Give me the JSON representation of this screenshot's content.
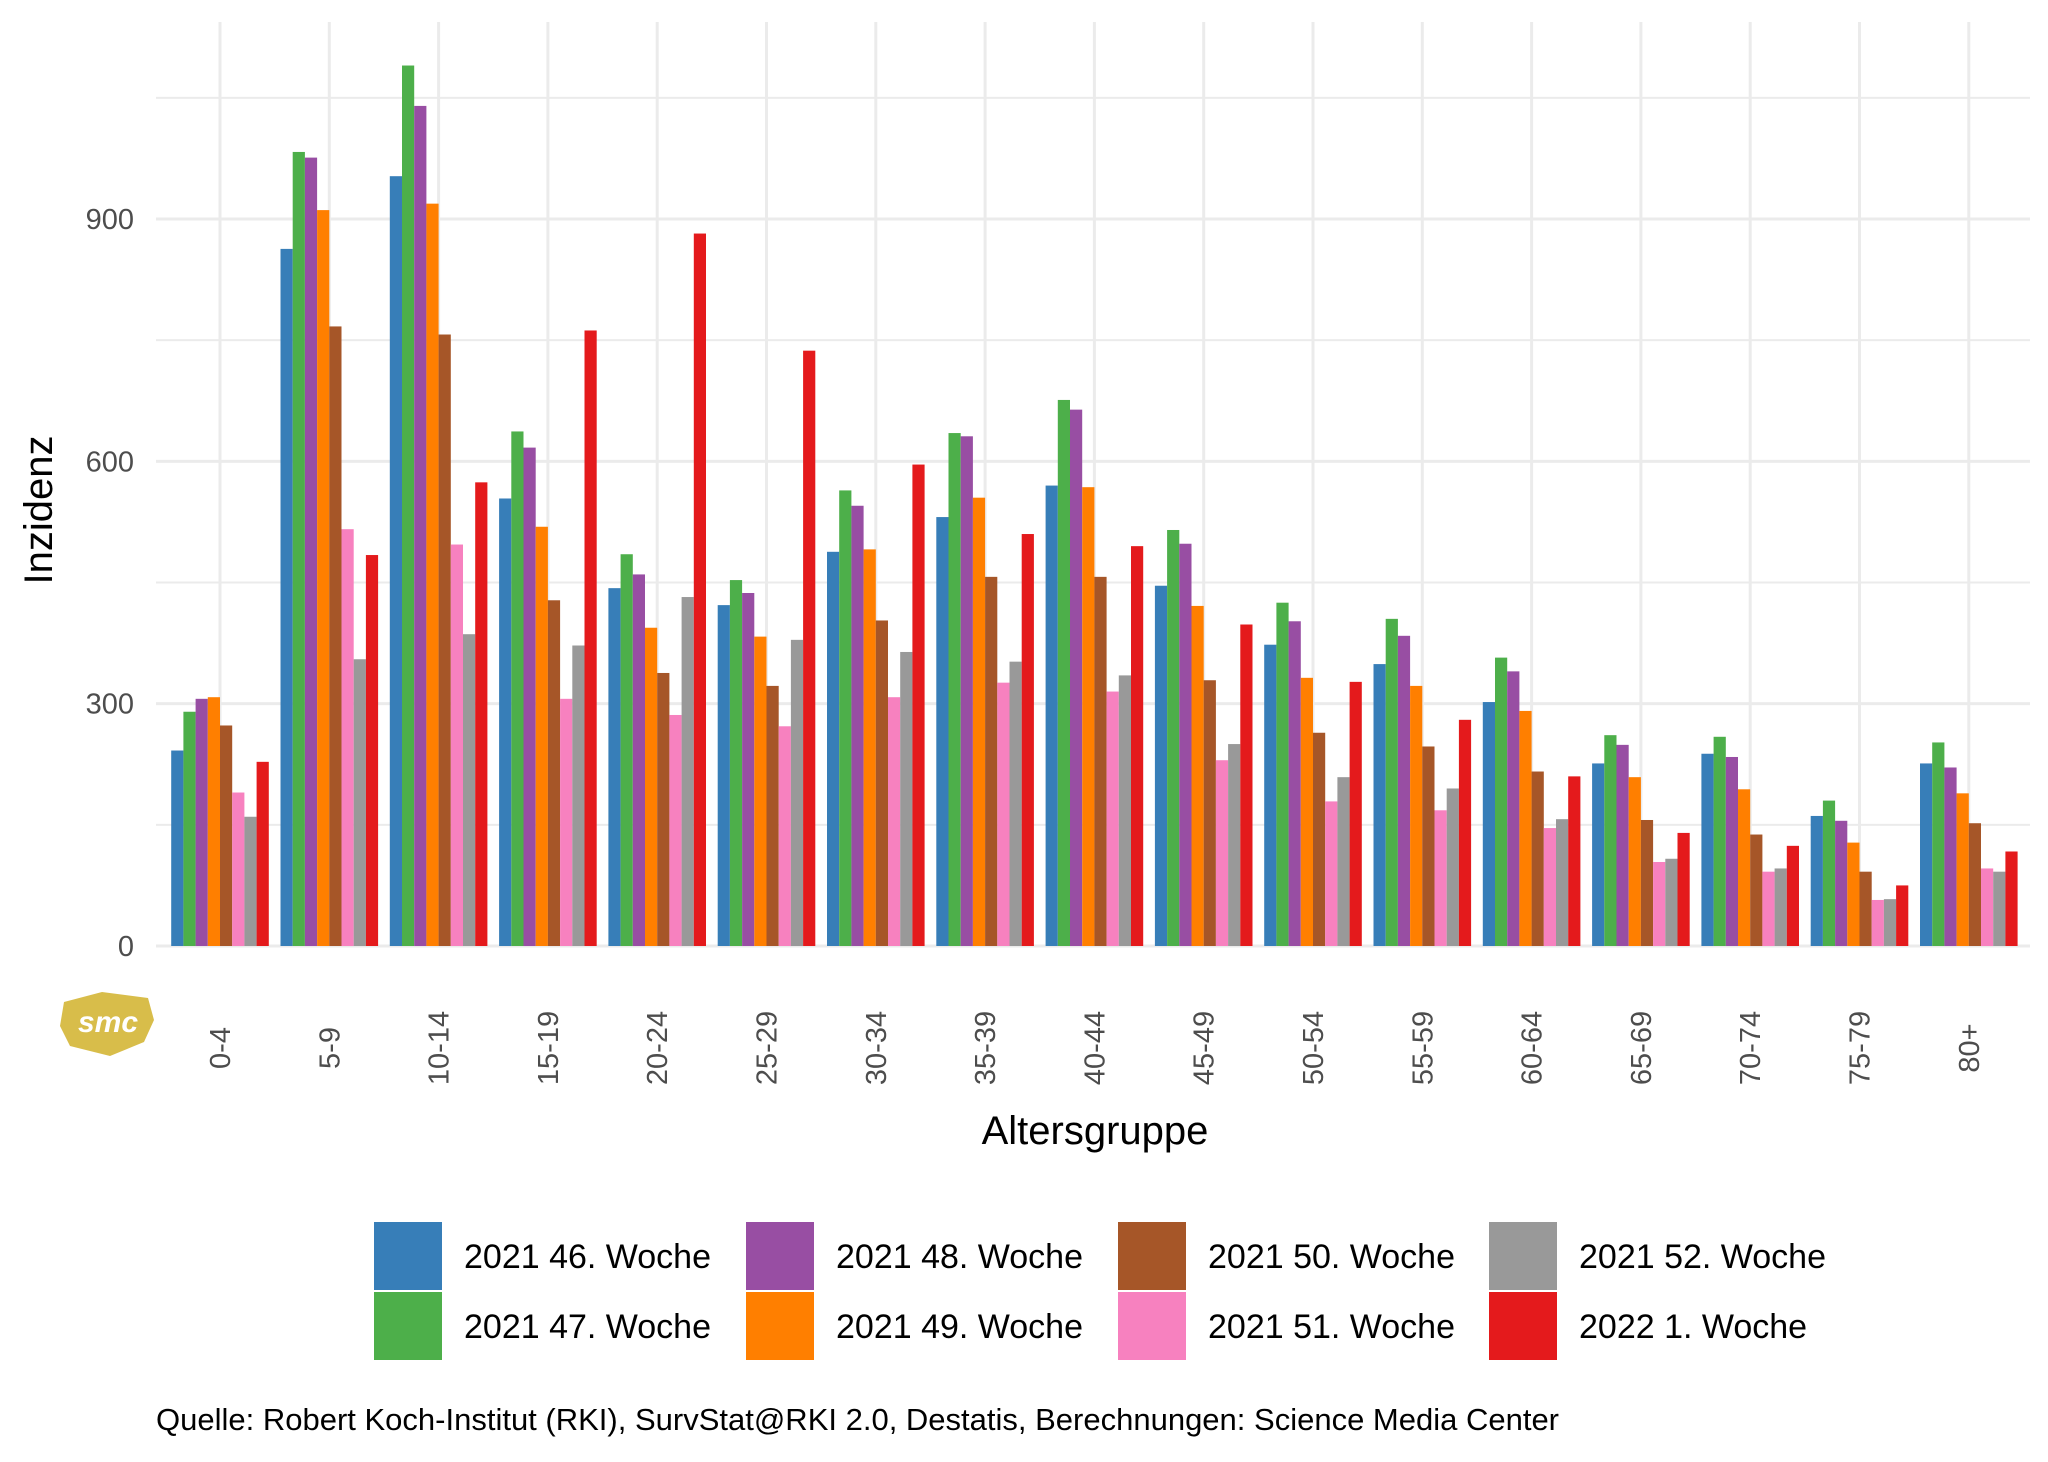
{
  "chart_data": {
    "type": "bar",
    "title": "",
    "xlabel": "Altersgruppe",
    "ylabel": "Inzidenz",
    "ylim": [
      0,
      1100
    ],
    "y_ticks": [
      0,
      300,
      600,
      900
    ],
    "y_tick_labels": [
      "0",
      "300",
      "600",
      "900"
    ],
    "grid": true,
    "legend_position": "bottom",
    "categories": [
      "0-4",
      "5-9",
      "10-14",
      "15-19",
      "20-24",
      "25-29",
      "30-34",
      "35-39",
      "40-44",
      "45-49",
      "50-54",
      "55-59",
      "60-64",
      "65-69",
      "70-74",
      "75-79",
      "80+"
    ],
    "series": [
      {
        "name": "2021 46. Woche",
        "color": "#377eb8",
        "values": [
          242,
          863,
          953,
          554,
          443,
          422,
          488,
          531,
          570,
          446,
          373,
          349,
          302,
          226,
          238,
          161,
          226
        ]
      },
      {
        "name": "2021 47. Woche",
        "color": "#4daf4a",
        "values": [
          290,
          983,
          1090,
          637,
          485,
          453,
          564,
          635,
          676,
          515,
          425,
          405,
          357,
          261,
          259,
          180,
          252
        ]
      },
      {
        "name": "2021 48. Woche",
        "color": "#984ea3",
        "values": [
          306,
          976,
          1040,
          617,
          460,
          437,
          545,
          631,
          664,
          498,
          402,
          384,
          340,
          249,
          234,
          155,
          221
        ]
      },
      {
        "name": "2021 49. Woche",
        "color": "#ff7f00",
        "values": [
          308,
          911,
          919,
          519,
          394,
          383,
          491,
          555,
          568,
          421,
          332,
          322,
          291,
          209,
          194,
          128,
          189
        ]
      },
      {
        "name": "2021 50. Woche",
        "color": "#a65628",
        "values": [
          273,
          767,
          757,
          428,
          338,
          322,
          403,
          457,
          457,
          329,
          264,
          247,
          216,
          156,
          138,
          92,
          152
        ]
      },
      {
        "name": "2021 51. Woche",
        "color": "#f781bf",
        "values": [
          190,
          516,
          497,
          306,
          286,
          272,
          308,
          326,
          315,
          230,
          179,
          168,
          146,
          104,
          92,
          57,
          96
        ]
      },
      {
        "name": "2021 52. Woche",
        "color": "#999999",
        "values": [
          160,
          355,
          386,
          372,
          432,
          379,
          364,
          352,
          335,
          250,
          209,
          195,
          157,
          108,
          96,
          58,
          92
        ]
      },
      {
        "name": "2022 1. Woche",
        "color": "#e41a1c",
        "values": [
          228,
          484,
          574,
          762,
          882,
          737,
          596,
          510,
          495,
          398,
          327,
          280,
          210,
          140,
          124,
          75,
          117
        ]
      }
    ],
    "caption": "Quelle: Robert Koch-Institut (RKI), SurvStat@RKI 2.0, Destatis, Berechnungen: Science Media Center",
    "logo_text": "smc"
  }
}
